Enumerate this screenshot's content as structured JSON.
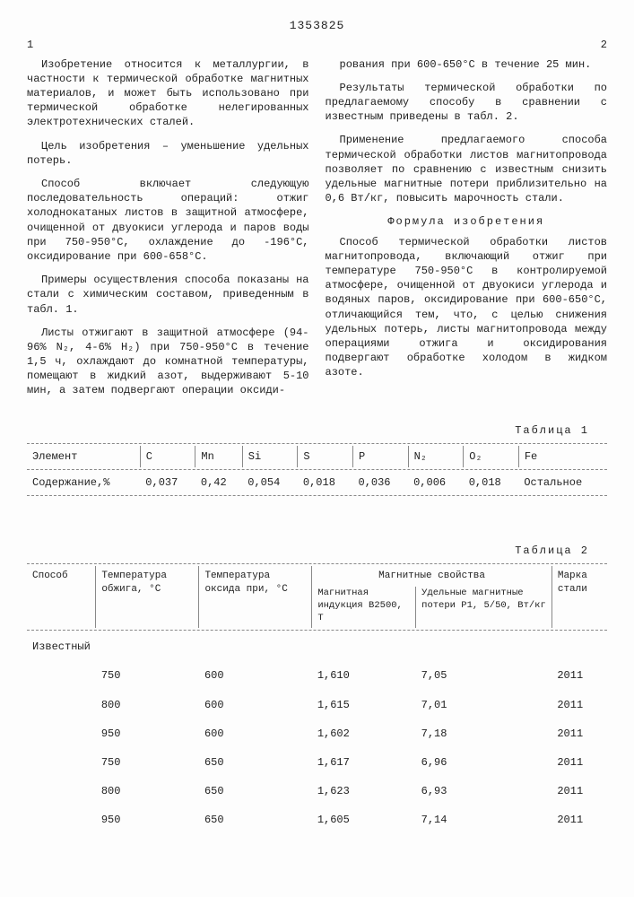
{
  "doc_number": "1353825",
  "col_left_num": "1",
  "col_right_num": "2",
  "left_paragraphs": [
    "Изобретение относится к металлургии, в частности к термической обработке магнитных материалов, и может быть использовано при термической обработке нелегированных электротехнических сталей.",
    "Цель изобретения – уменьшение удельных потерь.",
    "Способ включает следующую последовательность операций: отжиг холоднокатаных листов в защитной атмосфере, очищенной от двуокиси углерода и паров воды при 750-950°С, охлаждение до -196°С, оксидирование при 600-658°С.",
    "Примеры осуществления способа показаны на стали с химическим составом, приведенным в табл. 1.",
    "Листы отжигают в защитной атмосфере (94-96% N₂, 4-6% H₂) при 750-950°С в течение 1,5 ч, охлаждают до комнатной температуры, помещают в жидкий азот, выдерживают 5-10 мин, а затем подвергают операции оксиди-"
  ],
  "right_paragraphs": [
    "рования при 600-650°С в течение 25 мин.",
    "Результаты термической обработки по предлагаемому способу в сравнении с известным приведены в табл. 2.",
    "Применение предлагаемого способа термической обработки листов магнитопровода позволяет по сравнению с известным снизить удельные магнитные потери приблизительно на 0,6 Вт/кг, повысить марочность стали."
  ],
  "formula_title": "Формула изобретения",
  "formula_body": "Способ термической обработки листов магнитопровода, включающий отжиг при температуре 750-950°С в контролируемой атмосфере, очищенной от двуокиси углерода и водяных паров, оксидирование при 600-650°С, отличающийся тем, что, с целью снижения удельных потерь, листы магнитопровода между операциями отжига и оксидирования подвергают обработке холодом в жидком азоте.",
  "table1_caption": "Таблица 1",
  "table1": {
    "row_label_1": "Элемент",
    "row_label_2": "Содержание,%",
    "cols": [
      "C",
      "Mn",
      "Si",
      "S",
      "P",
      "N₂",
      "O₂",
      "Fe"
    ],
    "vals": [
      "0,037",
      "0,42",
      "0,054",
      "0,018",
      "0,036",
      "0,006",
      "0,018",
      "Остальное"
    ]
  },
  "table2_caption": "Таблица 2",
  "table2": {
    "headers": {
      "c1": "Способ",
      "c2": "Температура обжига, °С",
      "c3": "Температура оксида при, °С",
      "c4": "Магнитные свойства",
      "c4a": "Магнитная индукция B2500, T",
      "c4b": "Удельные магнитные потери P1, 5/50, Вт/кг",
      "c5": "Марка стали"
    },
    "group_label": "Известный",
    "rows": [
      [
        "750",
        "600",
        "1,610",
        "7,05",
        "2011"
      ],
      [
        "800",
        "600",
        "1,615",
        "7,01",
        "2011"
      ],
      [
        "950",
        "600",
        "1,602",
        "7,18",
        "2011"
      ],
      [
        "750",
        "650",
        "1,617",
        "6,96",
        "2011"
      ],
      [
        "800",
        "650",
        "1,623",
        "6,93",
        "2011"
      ],
      [
        "950",
        "650",
        "1,605",
        "7,14",
        "2011"
      ]
    ]
  }
}
